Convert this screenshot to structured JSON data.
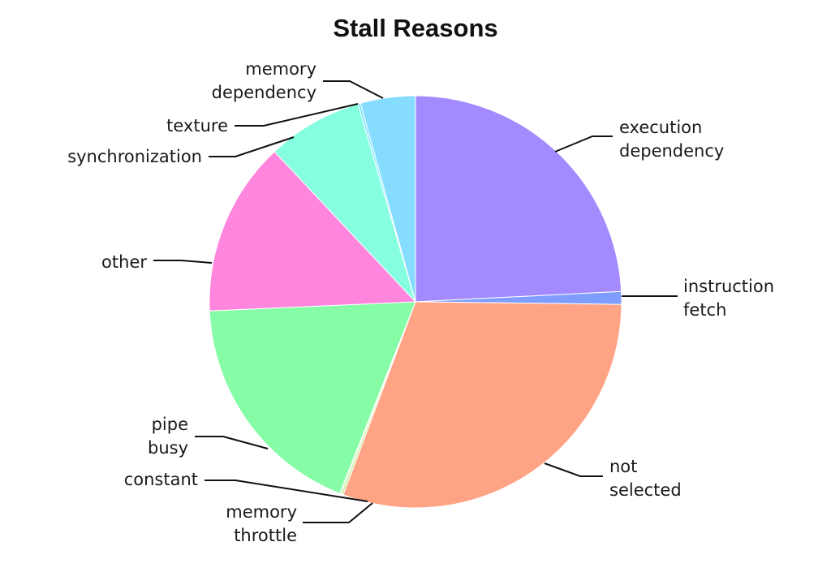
{
  "chart_data": {
    "type": "pie",
    "title": "Stall Reasons",
    "start_angle_deg": 0,
    "direction": "clockwise",
    "slices": [
      {
        "label": "execution dependency",
        "value": 24.2,
        "color": "#a38bff"
      },
      {
        "label": "instruction fetch",
        "value": 1.0,
        "color": "#7f9dff"
      },
      {
        "label": "not selected",
        "value": 30.5,
        "color": "#ffa385"
      },
      {
        "label": "memory throttle",
        "value": 0.2,
        "color": "#d0f0a0"
      },
      {
        "label": "constant",
        "value": 0.1,
        "color": "#a0f0b0"
      },
      {
        "label": "pipe busy",
        "value": 18.3,
        "color": "#85fca5"
      },
      {
        "label": "other",
        "value": 13.7,
        "color": "#ff85dd"
      },
      {
        "label": "synchronization",
        "value": 7.5,
        "color": "#85ffe0"
      },
      {
        "label": "texture",
        "value": 0.2,
        "color": "#85e4ff"
      },
      {
        "label": "memory dependency",
        "value": 4.3,
        "color": "#85dcff"
      }
    ]
  }
}
